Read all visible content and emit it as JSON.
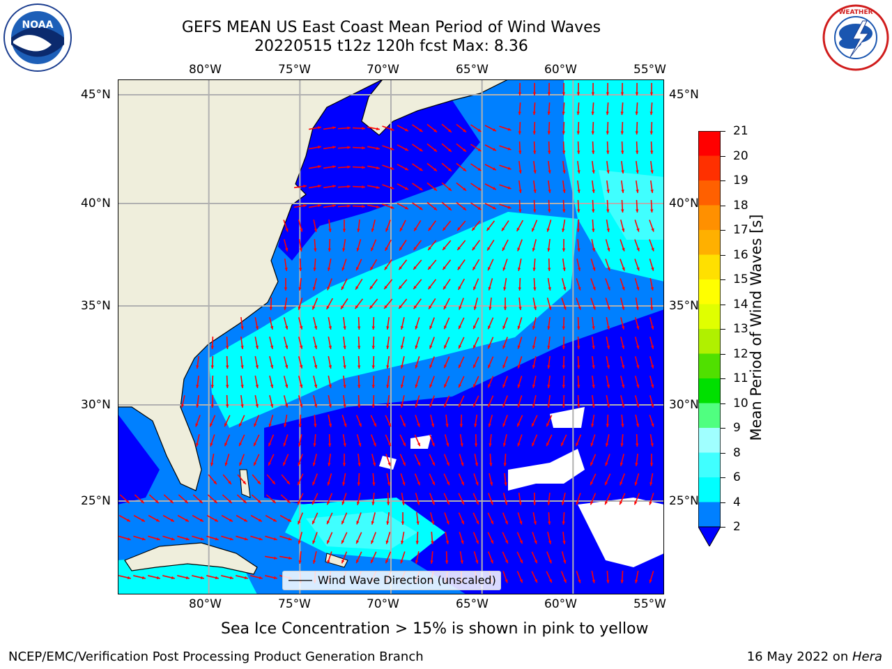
{
  "title": {
    "line1": "GEFS MEAN US East Coast Mean Period of Wind Waves",
    "line2": "20220515 t12z 120h fcst   Max: 8.36"
  },
  "logos": {
    "left": "NOAA",
    "right": "NATIONAL WEATHER SERVICE"
  },
  "map": {
    "lon_labels": [
      "80°W",
      "75°W",
      "70°W",
      "65°W",
      "60°W",
      "55°W"
    ],
    "lat_labels": [
      "45°N",
      "40°N",
      "35°N",
      "30°N",
      "25°N"
    ],
    "lon_range": [
      -85,
      -55
    ],
    "lat_range": [
      20,
      46
    ],
    "legend_label": "Wind Wave Direction (unscaled)",
    "arrow_color": "#ff0000",
    "land_color": "#efeedc"
  },
  "colorbar": {
    "label": "Mean Period of Wind Waves [s]",
    "ticks": [
      "21",
      "20",
      "19",
      "18",
      "17",
      "16",
      "15",
      "14",
      "13",
      "12",
      "11",
      "10",
      "9",
      "8",
      "6",
      "4",
      "2"
    ],
    "colors": [
      "#0000ff",
      "#0080ff",
      "#00ffff",
      "#40ffff",
      "#a0ffff",
      "#50ff80",
      "#00e000",
      "#50e000",
      "#b0f000",
      "#e0ff00",
      "#ffff00",
      "#ffe000",
      "#ffb000",
      "#ff9000",
      "#ff6000",
      "#ff3000",
      "#ff0000"
    ]
  },
  "note": "Sea Ice Concentration > 15% is shown in pink to yellow",
  "footer": {
    "left": "NCEP/EMC/Verification Post Processing Product Generation Branch",
    "right_prefix": "16 May 2022 on ",
    "right_italic": "Hera"
  }
}
